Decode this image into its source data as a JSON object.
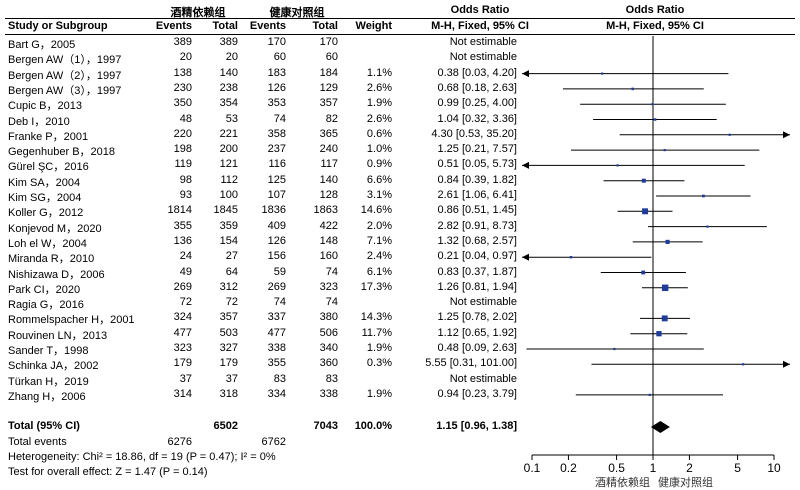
{
  "chart_data": {
    "type": "forest",
    "headers": {
      "group1": "酒精依赖组",
      "group2": "健康对照组",
      "study": "Study or Subgroup",
      "events": "Events",
      "total": "Total",
      "weight": "Weight",
      "or_col": "Odds Ratio",
      "or_method": "M-H, Fixed, 95% CI",
      "plot_title": "Odds Ratio",
      "plot_method": "M-H, Fixed, 95% CI"
    },
    "studies": [
      {
        "name": "Bart G，2005",
        "e1": "389",
        "t1": "389",
        "e2": "170",
        "t2": "170",
        "weight": "",
        "ci_text": "Not estimable",
        "or": null,
        "lo": null,
        "hi": null
      },
      {
        "name": "Bergen AW（1），1997",
        "e1": "20",
        "t1": "20",
        "e2": "60",
        "t2": "60",
        "weight": "",
        "ci_text": "Not estimable",
        "or": null,
        "lo": null,
        "hi": null
      },
      {
        "name": "Bergen AW（2），1997",
        "e1": "138",
        "t1": "140",
        "e2": "183",
        "t2": "184",
        "weight": "1.1%",
        "ci_text": "0.38 [0.03, 4.20]",
        "or": 0.38,
        "lo": 0.03,
        "hi": 4.2
      },
      {
        "name": "Bergen AW（3），1997",
        "e1": "230",
        "t1": "238",
        "e2": "126",
        "t2": "129",
        "weight": "2.6%",
        "ci_text": "0.68 [0.18, 2.63]",
        "or": 0.68,
        "lo": 0.18,
        "hi": 2.63
      },
      {
        "name": "Cupic B，2013",
        "e1": "350",
        "t1": "354",
        "e2": "353",
        "t2": "357",
        "weight": "1.9%",
        "ci_text": "0.99 [0.25, 4.00]",
        "or": 0.99,
        "lo": 0.25,
        "hi": 4.0
      },
      {
        "name": "Deb I，2010",
        "e1": "48",
        "t1": "53",
        "e2": "74",
        "t2": "82",
        "weight": "2.6%",
        "ci_text": "1.04 [0.32, 3.36]",
        "or": 1.04,
        "lo": 0.32,
        "hi": 3.36
      },
      {
        "name": "Franke P，2001",
        "e1": "220",
        "t1": "221",
        "e2": "358",
        "t2": "365",
        "weight": "0.6%",
        "ci_text": "4.30 [0.53, 35.20]",
        "or": 4.3,
        "lo": 0.53,
        "hi": 35.2
      },
      {
        "name": "Gegenhuber B，2018",
        "e1": "198",
        "t1": "200",
        "e2": "237",
        "t2": "240",
        "weight": "1.0%",
        "ci_text": "1.25 [0.21, 7.57]",
        "or": 1.25,
        "lo": 0.21,
        "hi": 7.57
      },
      {
        "name": "Gürel ŞC，2016",
        "e1": "119",
        "t1": "121",
        "e2": "116",
        "t2": "117",
        "weight": "0.9%",
        "ci_text": "0.51 [0.05, 5.73]",
        "or": 0.51,
        "lo": 0.05,
        "hi": 5.73
      },
      {
        "name": "Kim SA，2004",
        "e1": "98",
        "t1": "112",
        "e2": "125",
        "t2": "140",
        "weight": "6.6%",
        "ci_text": "0.84 [0.39, 1.82]",
        "or": 0.84,
        "lo": 0.39,
        "hi": 1.82
      },
      {
        "name": "Kim SG，2004",
        "e1": "93",
        "t1": "100",
        "e2": "107",
        "t2": "128",
        "weight": "3.1%",
        "ci_text": "2.61 [1.06, 6.41]",
        "or": 2.61,
        "lo": 1.06,
        "hi": 6.41
      },
      {
        "name": "Koller G，2012",
        "e1": "1814",
        "t1": "1845",
        "e2": "1836",
        "t2": "1863",
        "weight": "14.6%",
        "ci_text": "0.86 [0.51, 1.45]",
        "or": 0.86,
        "lo": 0.51,
        "hi": 1.45
      },
      {
        "name": "Konjevod M，2020",
        "e1": "355",
        "t1": "359",
        "e2": "409",
        "t2": "422",
        "weight": "2.0%",
        "ci_text": "2.82 [0.91, 8.73]",
        "or": 2.82,
        "lo": 0.91,
        "hi": 8.73
      },
      {
        "name": "Loh el W，2004",
        "e1": "136",
        "t1": "154",
        "e2": "126",
        "t2": "148",
        "weight": "7.1%",
        "ci_text": "1.32 [0.68, 2.57]",
        "or": 1.32,
        "lo": 0.68,
        "hi": 2.57
      },
      {
        "name": "Miranda R，2010",
        "e1": "24",
        "t1": "27",
        "e2": "156",
        "t2": "160",
        "weight": "2.4%",
        "ci_text": "0.21 [0.04, 0.97]",
        "or": 0.21,
        "lo": 0.04,
        "hi": 0.97
      },
      {
        "name": "Nishizawa D，2006",
        "e1": "49",
        "t1": "64",
        "e2": "59",
        "t2": "74",
        "weight": "6.1%",
        "ci_text": "0.83 [0.37, 1.87]",
        "or": 0.83,
        "lo": 0.37,
        "hi": 1.87
      },
      {
        "name": "Park CI，2020",
        "e1": "269",
        "t1": "312",
        "e2": "269",
        "t2": "323",
        "weight": "17.3%",
        "ci_text": "1.26 [0.81, 1.94]",
        "or": 1.26,
        "lo": 0.81,
        "hi": 1.94
      },
      {
        "name": "Ragia G，2016",
        "e1": "72",
        "t1": "72",
        "e2": "74",
        "t2": "74",
        "weight": "",
        "ci_text": "Not estimable",
        "or": null,
        "lo": null,
        "hi": null
      },
      {
        "name": "Rommelspacher H，2001",
        "e1": "324",
        "t1": "357",
        "e2": "337",
        "t2": "380",
        "weight": "14.3%",
        "ci_text": "1.25 [0.78, 2.02]",
        "or": 1.25,
        "lo": 0.78,
        "hi": 2.02
      },
      {
        "name": "Rouvinen LN，2013",
        "e1": "477",
        "t1": "503",
        "e2": "477",
        "t2": "506",
        "weight": "11.7%",
        "ci_text": "1.12 [0.65, 1.92]",
        "or": 1.12,
        "lo": 0.65,
        "hi": 1.92
      },
      {
        "name": "Sander T，1998",
        "e1": "323",
        "t1": "327",
        "e2": "338",
        "t2": "340",
        "weight": "1.9%",
        "ci_text": "0.48 [0.09, 2.63]",
        "or": 0.48,
        "lo": 0.09,
        "hi": 2.63
      },
      {
        "name": "Schinka JA，2002",
        "e1": "179",
        "t1": "179",
        "e2": "355",
        "t2": "360",
        "weight": "0.3%",
        "ci_text": "5.55 [0.31, 101.00]",
        "or": 5.55,
        "lo": 0.31,
        "hi": 101.0
      },
      {
        "name": "Türkan H，2019",
        "e1": "37",
        "t1": "37",
        "e2": "83",
        "t2": "83",
        "weight": "",
        "ci_text": "Not estimable",
        "or": null,
        "lo": null,
        "hi": null
      },
      {
        "name": "Zhang H，2006",
        "e1": "314",
        "t1": "318",
        "e2": "334",
        "t2": "338",
        "weight": "1.9%",
        "ci_text": "0.94 [0.23, 3.79]",
        "or": 0.94,
        "lo": 0.23,
        "hi": 3.79
      }
    ],
    "total": {
      "name": "Total (95% CI)",
      "t1": "6502",
      "t2": "7043",
      "weight": "100.0%",
      "ci_text": "1.15 [0.96, 1.38]",
      "or": 1.15,
      "lo": 0.96,
      "hi": 1.38
    },
    "total_events": {
      "label": "Total events",
      "e1": "6276",
      "e2": "6762"
    },
    "heterogeneity": "Heterogeneity: Chi² = 18.86, df = 19 (P = 0.47); I² = 0%",
    "overall_effect": "Test for overall effect: Z = 1.47 (P = 0.14)",
    "x_scale": "log",
    "x_ticks": [
      0.1,
      0.2,
      0.5,
      1,
      2,
      5,
      10
    ],
    "x_tick_labels": [
      "0.1",
      "0.2",
      "0.5",
      "1",
      "2",
      "5",
      "10"
    ],
    "xlim": [
      0.1,
      10
    ],
    "favours_left": "酒精依赖组",
    "favours_right": "健康对照组",
    "colors": {
      "marker": "#1f3c99",
      "line": "#000000"
    }
  }
}
